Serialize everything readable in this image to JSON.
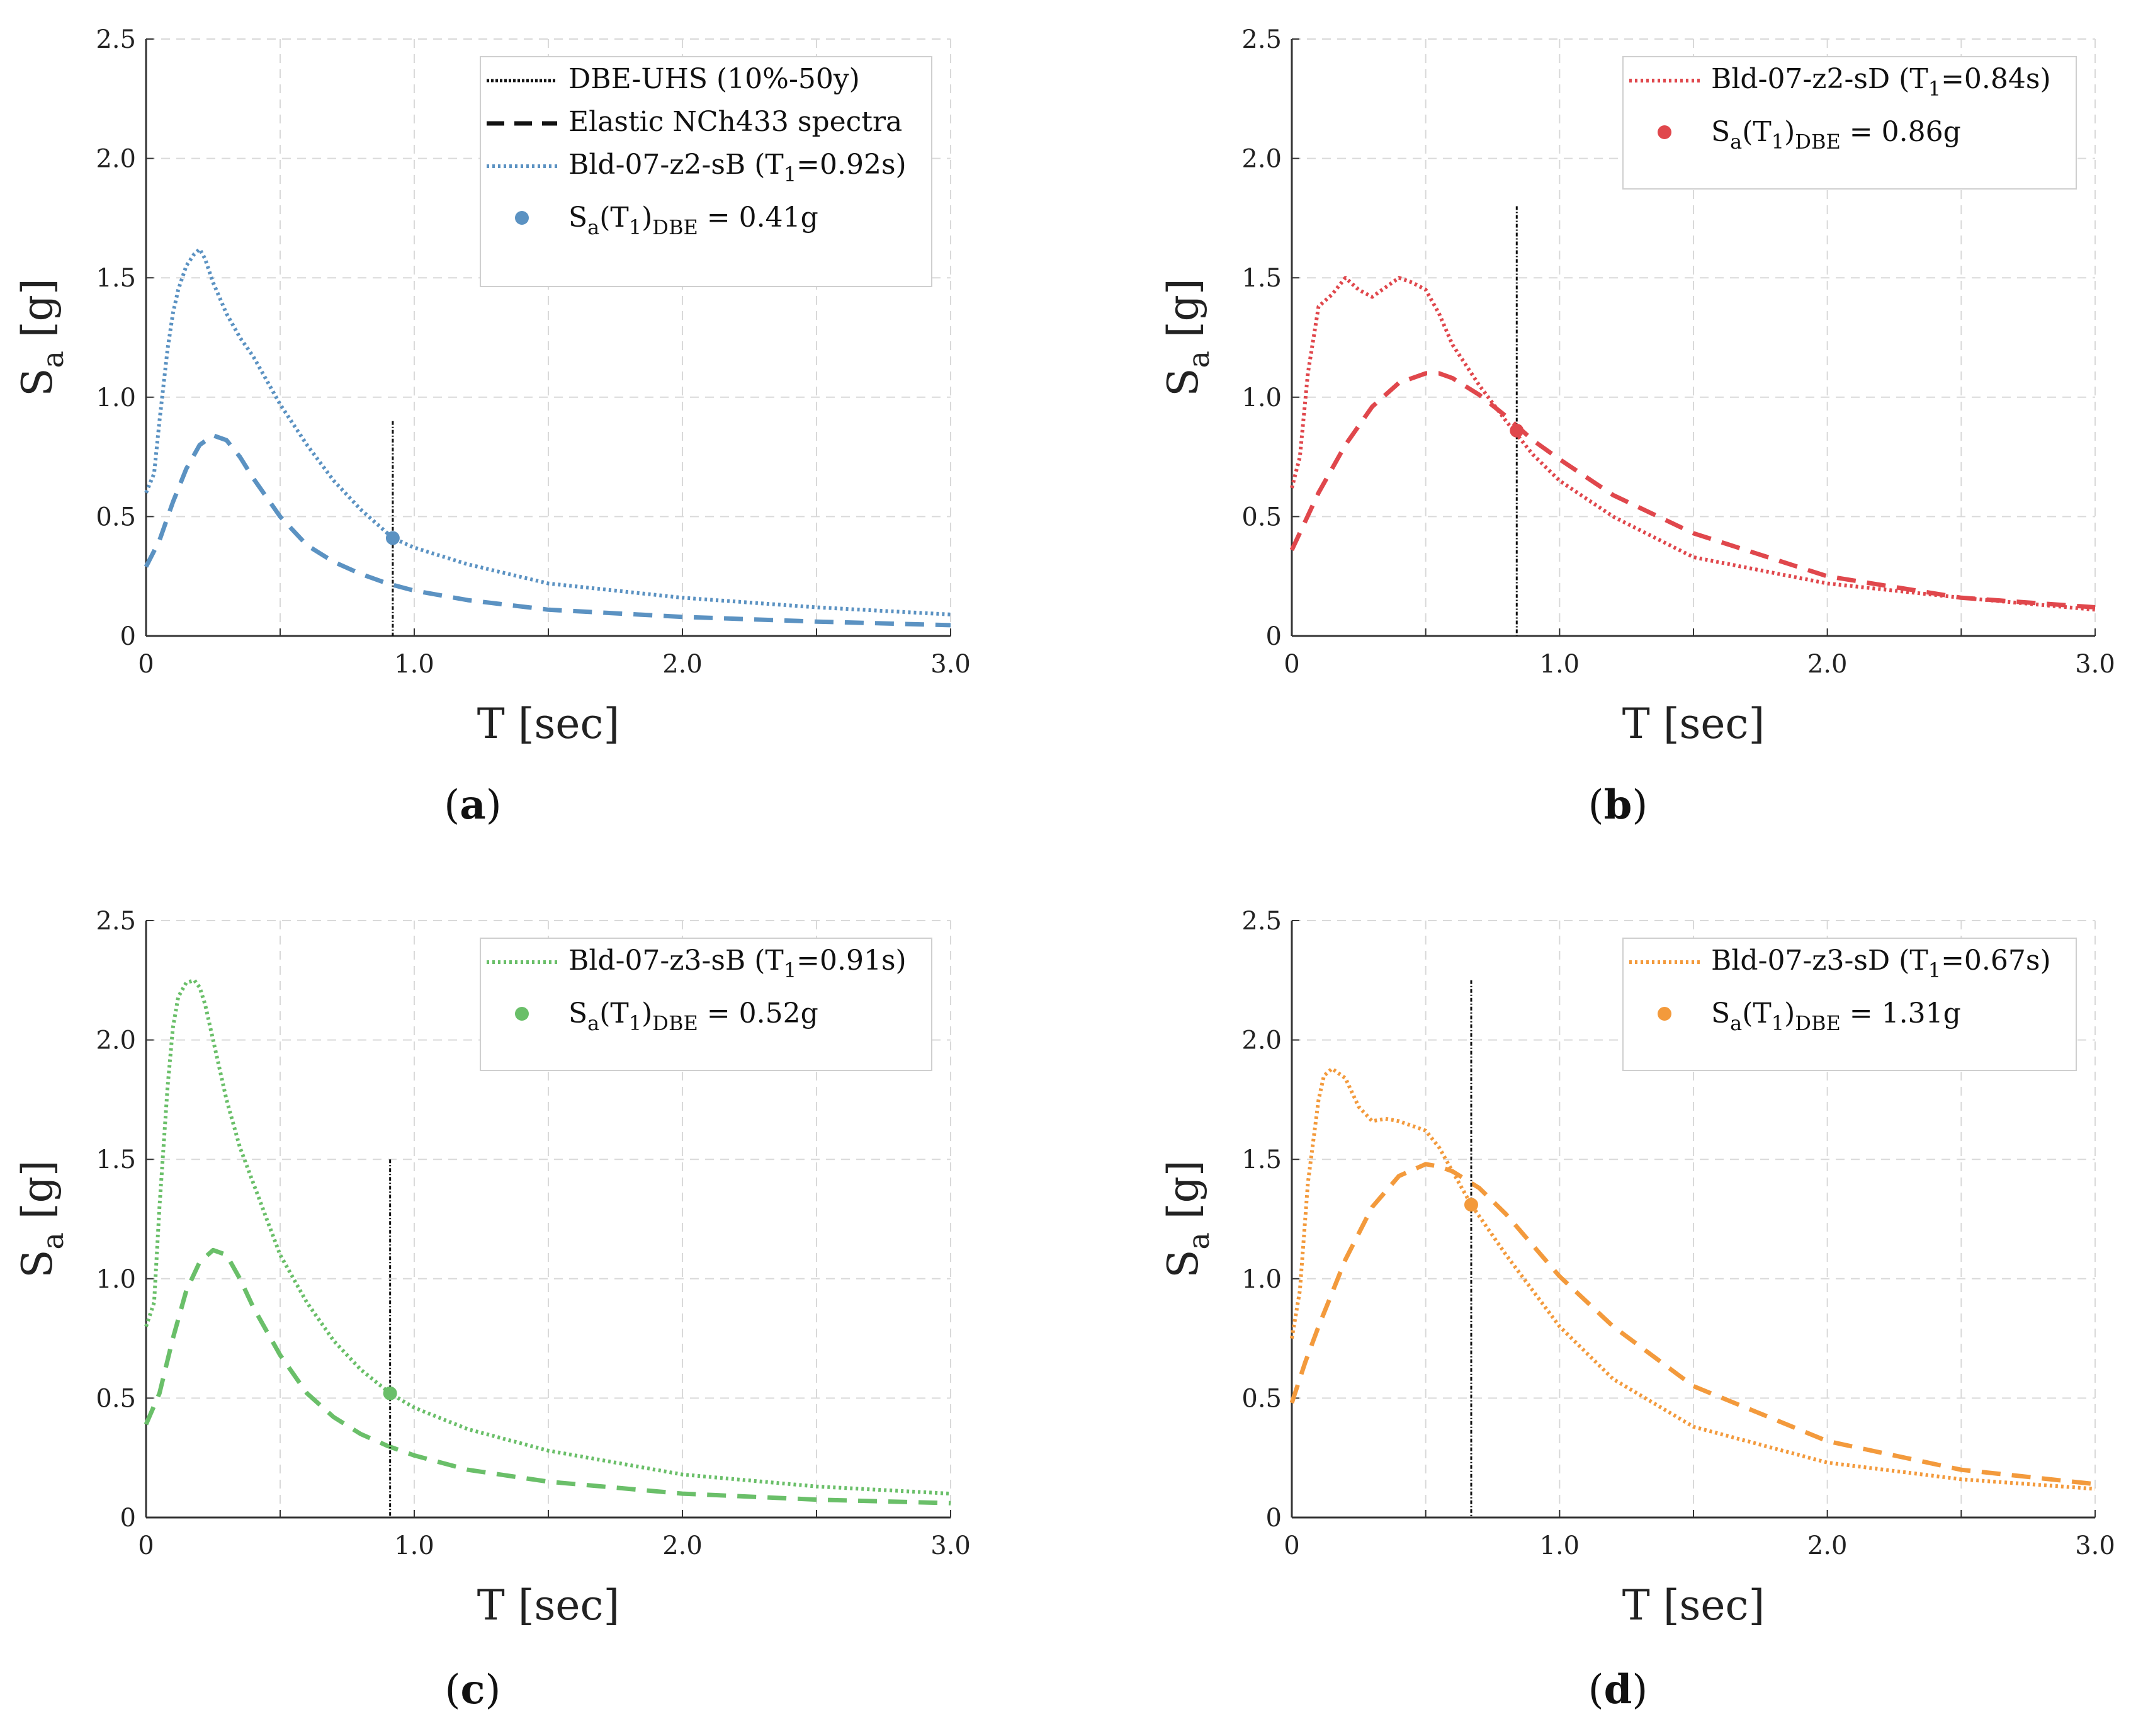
{
  "figure": {
    "x_label_main": "T",
    "x_label_unit": "[sec]",
    "y_label_main": "S",
    "y_label_sub": "a",
    "y_label_unit": "[g]",
    "x_ticks": [
      "0",
      "1.0",
      "2.0",
      "3.0"
    ],
    "y_ticks": [
      "0",
      "0.5",
      "1.0",
      "1.5",
      "2.0",
      "2.5"
    ]
  },
  "chart_data": [
    {
      "type": "line",
      "panel": "a",
      "panel_label": "a",
      "color": "#5b92c2",
      "xlim": [
        0,
        3
      ],
      "ylim": [
        0,
        2.5
      ],
      "period_T1": 0.92,
      "sa_T1": 0.41,
      "dbe_line_top": 0.9,
      "series": [
        {
          "name": "Bld-07-z2-sB (T1=0.92s)",
          "style": "dotted",
          "x": [
            0,
            0.03,
            0.05,
            0.08,
            0.1,
            0.12,
            0.15,
            0.18,
            0.2,
            0.22,
            0.25,
            0.3,
            0.35,
            0.4,
            0.5,
            0.6,
            0.7,
            0.8,
            0.92,
            1.0,
            1.2,
            1.5,
            2.0,
            2.5,
            3.0
          ],
          "y": [
            0.6,
            0.68,
            0.9,
            1.2,
            1.35,
            1.45,
            1.55,
            1.6,
            1.62,
            1.58,
            1.48,
            1.35,
            1.25,
            1.17,
            0.97,
            0.8,
            0.65,
            0.53,
            0.41,
            0.37,
            0.3,
            0.22,
            0.16,
            0.12,
            0.09
          ]
        },
        {
          "name": "Elastic NCh433 spectra",
          "style": "dashed",
          "x": [
            0,
            0.05,
            0.1,
            0.15,
            0.2,
            0.25,
            0.3,
            0.35,
            0.4,
            0.5,
            0.6,
            0.7,
            0.8,
            0.9,
            1.0,
            1.2,
            1.5,
            2.0,
            2.5,
            3.0
          ],
          "y": [
            0.29,
            0.4,
            0.56,
            0.7,
            0.8,
            0.84,
            0.82,
            0.75,
            0.66,
            0.5,
            0.38,
            0.31,
            0.26,
            0.22,
            0.19,
            0.15,
            0.11,
            0.08,
            0.06,
            0.045
          ]
        }
      ],
      "legend": {
        "items": [
          {
            "label": "DBE-UHS (10%-50y)",
            "style": "dbe"
          },
          {
            "label": "Elastic NCh433 spectra",
            "style": "dashed-black"
          },
          {
            "label": "Bld-07-z2-sB (T",
            "sub": "1",
            "tail": "=0.92s)",
            "style": "dotted"
          }
        ],
        "marker": {
          "pre": "S",
          "sub1": "a",
          "mid": "(T",
          "sub2": "1",
          "close": ")",
          "sub3": "DBE",
          "value": " = 0.41g"
        }
      }
    },
    {
      "type": "line",
      "panel": "b",
      "panel_label": "b",
      "color": "#e0474c",
      "xlim": [
        0,
        3
      ],
      "ylim": [
        0,
        2.5
      ],
      "period_T1": 0.84,
      "sa_T1": 0.86,
      "dbe_line_top": 1.8,
      "series": [
        {
          "name": "Bld-07-z2-sD (T1=0.84s)",
          "style": "dotted",
          "x": [
            0,
            0.03,
            0.06,
            0.1,
            0.15,
            0.2,
            0.25,
            0.3,
            0.35,
            0.4,
            0.45,
            0.5,
            0.55,
            0.6,
            0.7,
            0.8,
            0.9,
            1.0,
            1.2,
            1.5,
            2.0,
            2.5,
            3.0
          ],
          "y": [
            0.62,
            0.75,
            1.1,
            1.38,
            1.43,
            1.5,
            1.45,
            1.42,
            1.46,
            1.5,
            1.48,
            1.45,
            1.35,
            1.22,
            1.05,
            0.9,
            0.76,
            0.65,
            0.5,
            0.33,
            0.22,
            0.16,
            0.11
          ]
        },
        {
          "name": "Elastic NCh433 spectra",
          "style": "dashed",
          "x": [
            0,
            0.05,
            0.1,
            0.2,
            0.3,
            0.4,
            0.5,
            0.55,
            0.6,
            0.7,
            0.8,
            0.9,
            1.0,
            1.2,
            1.5,
            2.0,
            2.5,
            3.0
          ],
          "y": [
            0.36,
            0.48,
            0.6,
            0.8,
            0.96,
            1.06,
            1.1,
            1.1,
            1.08,
            1.01,
            0.92,
            0.82,
            0.74,
            0.59,
            0.43,
            0.25,
            0.16,
            0.12
          ]
        }
      ],
      "legend": {
        "items": [
          {
            "label": "Bld-07-z2-sD (T",
            "sub": "1",
            "tail": "=0.84s)",
            "style": "dotted"
          }
        ],
        "marker": {
          "pre": "S",
          "sub1": "a",
          "mid": "(T",
          "sub2": "1",
          "close": ")",
          "sub3": "DBE",
          "value": " = 0.86g"
        }
      }
    },
    {
      "type": "line",
      "panel": "c",
      "panel_label": "c",
      "color": "#6abf69",
      "xlim": [
        0,
        3
      ],
      "ylim": [
        0,
        2.5
      ],
      "period_T1": 0.91,
      "sa_T1": 0.52,
      "dbe_line_top": 1.5,
      "series": [
        {
          "name": "Bld-07-z3-sB (T1=0.91s)",
          "style": "dotted",
          "x": [
            0,
            0.03,
            0.05,
            0.08,
            0.1,
            0.12,
            0.15,
            0.18,
            0.2,
            0.22,
            0.25,
            0.3,
            0.35,
            0.4,
            0.5,
            0.6,
            0.7,
            0.8,
            0.91,
            1.0,
            1.2,
            1.5,
            2.0,
            2.5,
            3.0
          ],
          "y": [
            0.8,
            0.9,
            1.3,
            1.8,
            2.05,
            2.18,
            2.24,
            2.25,
            2.22,
            2.15,
            2.0,
            1.75,
            1.55,
            1.4,
            1.1,
            0.9,
            0.74,
            0.62,
            0.52,
            0.46,
            0.37,
            0.28,
            0.18,
            0.13,
            0.1
          ]
        },
        {
          "name": "Elastic NCh433 spectra",
          "style": "dashed",
          "x": [
            0,
            0.05,
            0.1,
            0.15,
            0.2,
            0.25,
            0.3,
            0.35,
            0.4,
            0.5,
            0.6,
            0.7,
            0.8,
            0.9,
            1.0,
            1.2,
            1.5,
            2.0,
            2.5,
            3.0
          ],
          "y": [
            0.39,
            0.52,
            0.75,
            0.95,
            1.07,
            1.12,
            1.1,
            1.0,
            0.88,
            0.68,
            0.52,
            0.42,
            0.35,
            0.3,
            0.26,
            0.2,
            0.15,
            0.1,
            0.075,
            0.06
          ]
        }
      ],
      "legend": {
        "items": [
          {
            "label": "Bld-07-z3-sB (T",
            "sub": "1",
            "tail": "=0.91s)",
            "style": "dotted"
          }
        ],
        "marker": {
          "pre": "S",
          "sub1": "a",
          "mid": "(T",
          "sub2": "1",
          "close": ")",
          "sub3": "DBE",
          "value": " = 0.52g"
        }
      }
    },
    {
      "type": "line",
      "panel": "d",
      "panel_label": "d",
      "color": "#f39a3c",
      "xlim": [
        0,
        3
      ],
      "ylim": [
        0,
        2.5
      ],
      "period_T1": 0.67,
      "sa_T1": 1.31,
      "dbe_line_top": 2.25,
      "series": [
        {
          "name": "Bld-07-z3-sD (T1=0.67s)",
          "style": "dotted",
          "x": [
            0,
            0.03,
            0.06,
            0.1,
            0.12,
            0.15,
            0.2,
            0.25,
            0.3,
            0.35,
            0.4,
            0.45,
            0.5,
            0.55,
            0.6,
            0.67,
            0.8,
            1.0,
            1.2,
            1.5,
            2.0,
            2.5,
            3.0
          ],
          "y": [
            0.75,
            0.95,
            1.4,
            1.75,
            1.85,
            1.88,
            1.84,
            1.72,
            1.66,
            1.67,
            1.66,
            1.64,
            1.62,
            1.55,
            1.45,
            1.31,
            1.1,
            0.8,
            0.58,
            0.38,
            0.23,
            0.16,
            0.12
          ]
        },
        {
          "name": "Elastic NCh433 spectra",
          "style": "dashed",
          "x": [
            0,
            0.05,
            0.1,
            0.2,
            0.3,
            0.4,
            0.5,
            0.55,
            0.6,
            0.7,
            0.8,
            0.9,
            1.0,
            1.2,
            1.5,
            2.0,
            2.5,
            3.0
          ],
          "y": [
            0.48,
            0.65,
            0.8,
            1.08,
            1.3,
            1.43,
            1.48,
            1.47,
            1.45,
            1.38,
            1.27,
            1.14,
            1.01,
            0.8,
            0.55,
            0.32,
            0.2,
            0.14
          ]
        }
      ],
      "legend": {
        "items": [
          {
            "label": "Bld-07-z3-sD (T",
            "sub": "1",
            "tail": "=0.67s)",
            "style": "dotted"
          }
        ],
        "marker": {
          "pre": "S",
          "sub1": "a",
          "mid": "(T",
          "sub2": "1",
          "close": ")",
          "sub3": "DBE",
          "value": " = 1.31g"
        }
      }
    }
  ]
}
